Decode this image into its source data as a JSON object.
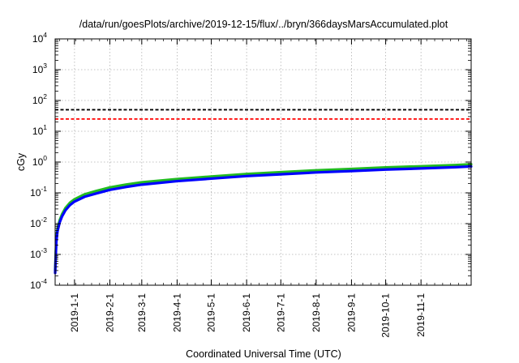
{
  "chart_data": {
    "type": "line",
    "title": "/data/run/goesPlots/archive/2019-12-15/flux/../bryn/366daysMarsAccumulated.plot",
    "xlabel": "Coordinated Universal Time (UTC)",
    "ylabel": "cGy",
    "y_scale": "log",
    "ylim": [
      0.0001,
      10000
    ],
    "xlim": [
      "2018-12-15",
      "2019-12-15"
    ],
    "y_ticks": [
      {
        "base": "10",
        "exp": "-4",
        "value": 0.0001
      },
      {
        "base": "10",
        "exp": "-3",
        "value": 0.001
      },
      {
        "base": "10",
        "exp": "-2",
        "value": 0.01
      },
      {
        "base": "10",
        "exp": "-1",
        "value": 0.1
      },
      {
        "base": "10",
        "exp": "0",
        "value": 1
      },
      {
        "base": "10",
        "exp": "1",
        "value": 10
      },
      {
        "base": "10",
        "exp": "2",
        "value": 100
      },
      {
        "base": "10",
        "exp": "3",
        "value": 1000
      },
      {
        "base": "10",
        "exp": "4",
        "value": 10000
      }
    ],
    "x_ticks": [
      {
        "label": "2019-1-1",
        "date": "2019-01-01"
      },
      {
        "label": "2019-2-1",
        "date": "2019-02-01"
      },
      {
        "label": "2019-3-1",
        "date": "2019-03-01"
      },
      {
        "label": "2019-4-1",
        "date": "2019-04-01"
      },
      {
        "label": "2019-5-1",
        "date": "2019-05-01"
      },
      {
        "label": "2019-6-1",
        "date": "2019-06-01"
      },
      {
        "label": "2019-7-1",
        "date": "2019-07-01"
      },
      {
        "label": "2019-8-1",
        "date": "2019-08-01"
      },
      {
        "label": "2019-9-1",
        "date": "2019-09-01"
      },
      {
        "label": "2019-10-1",
        "date": "2019-10-01"
      },
      {
        "label": "2019-11-1",
        "date": "2019-11-01"
      }
    ],
    "grid": true,
    "reference_lines": [
      {
        "y": 50,
        "color": "#000000",
        "style": "dashed"
      },
      {
        "y": 25,
        "color": "#ff0000",
        "style": "dashed"
      }
    ],
    "series": [
      {
        "color": "#22bb22",
        "x": [
          "2018-12-15",
          "2018-12-16",
          "2018-12-17",
          "2018-12-19",
          "2018-12-21",
          "2018-12-24",
          "2018-12-28",
          "2019-01-01",
          "2019-01-10",
          "2019-01-20",
          "2019-02-01",
          "2019-02-15",
          "2019-03-01",
          "2019-04-01",
          "2019-05-01",
          "2019-06-01",
          "2019-07-01",
          "2019-08-01",
          "2019-09-01",
          "2019-10-01",
          "2019-11-01",
          "2019-12-01",
          "2019-12-15"
        ],
        "y": [
          0.0003,
          0.003,
          0.0065,
          0.013,
          0.02,
          0.032,
          0.048,
          0.062,
          0.09,
          0.115,
          0.15,
          0.185,
          0.22,
          0.28,
          0.34,
          0.41,
          0.47,
          0.54,
          0.6,
          0.67,
          0.73,
          0.8,
          0.85
        ]
      },
      {
        "color": "#0000ff",
        "x": [
          "2018-12-15",
          "2018-12-16",
          "2018-12-17",
          "2018-12-19",
          "2018-12-21",
          "2018-12-24",
          "2018-12-28",
          "2019-01-01",
          "2019-01-10",
          "2019-01-20",
          "2019-02-01",
          "2019-02-15",
          "2019-03-01",
          "2019-04-01",
          "2019-05-01",
          "2019-06-01",
          "2019-07-01",
          "2019-08-01",
          "2019-09-01",
          "2019-10-01",
          "2019-11-01",
          "2019-12-01",
          "2019-12-15"
        ],
        "y": [
          0.00025,
          0.0025,
          0.0055,
          0.011,
          0.017,
          0.027,
          0.04,
          0.052,
          0.075,
          0.095,
          0.125,
          0.155,
          0.185,
          0.24,
          0.29,
          0.35,
          0.4,
          0.46,
          0.51,
          0.57,
          0.62,
          0.68,
          0.72
        ]
      }
    ]
  }
}
